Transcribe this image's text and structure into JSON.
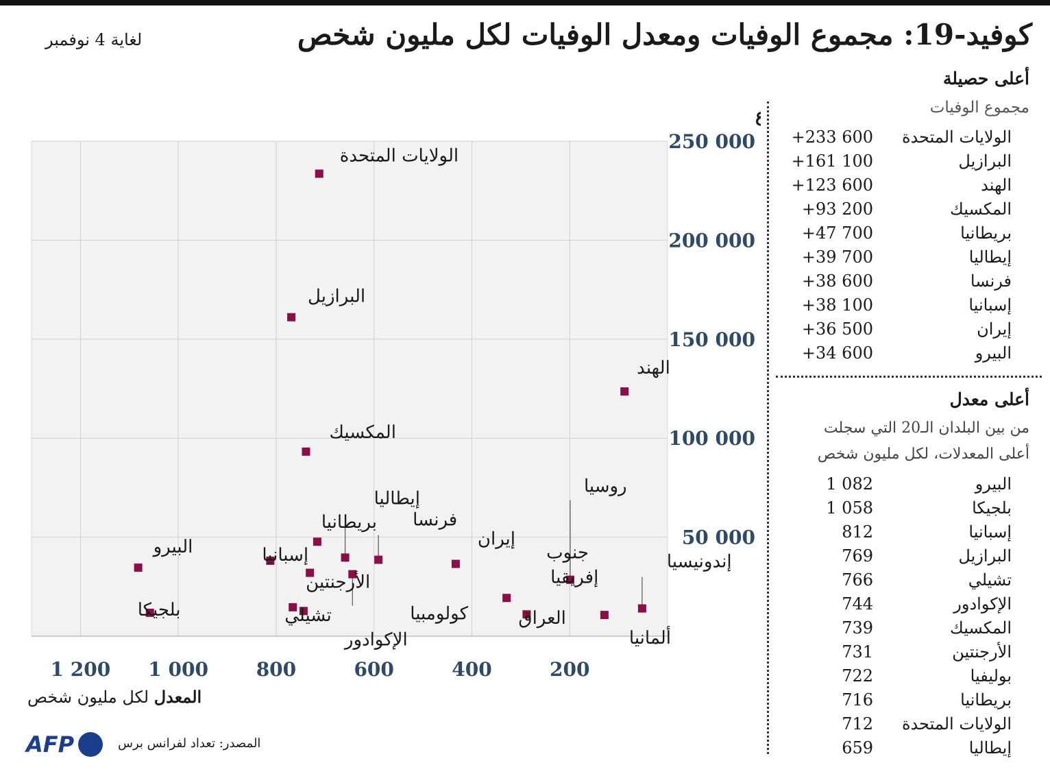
{
  "header": {
    "title": "كوفيد-19: مجموع الوفيات ومعدل الوفيات لكل مليون شخص",
    "date": "لغاية 4 نوفمبر"
  },
  "sidebar": {
    "top_total": {
      "heading": "أعلى حصيلة",
      "subheading": "مجموع الوفيات",
      "rows": [
        {
          "country": "الولايات المتحدة",
          "value": "+233 600"
        },
        {
          "country": "البرازيل",
          "value": "+161 100"
        },
        {
          "country": "الهند",
          "value": "+123 600"
        },
        {
          "country": "المكسيك",
          "value": "+93 200"
        },
        {
          "country": "بريطانيا",
          "value": "+47 700"
        },
        {
          "country": "إيطاليا",
          "value": "+39 700"
        },
        {
          "country": "فرنسا",
          "value": "+38 600"
        },
        {
          "country": "إسبانيا",
          "value": "+38 100"
        },
        {
          "country": "إيران",
          "value": "+36 500"
        },
        {
          "country": "البيرو",
          "value": "+34 600"
        }
      ]
    },
    "top_rate": {
      "heading": "أعلى معدل",
      "note_line1": "من بين البلدان الـ20 التي سجلت",
      "note_line2": "أعلى المعدلات، لكل مليون شخص",
      "rows": [
        {
          "country": "البيرو",
          "value": "1 082"
        },
        {
          "country": "بلجيكا",
          "value": "1 058"
        },
        {
          "country": "إسبانيا",
          "value": "812"
        },
        {
          "country": "البرازيل",
          "value": "769"
        },
        {
          "country": "تشيلي",
          "value": "766"
        },
        {
          "country": "الإكوادور",
          "value": "744"
        },
        {
          "country": "المكسيك",
          "value": "739"
        },
        {
          "country": "الأرجنتين",
          "value": "731"
        },
        {
          "country": "بوليفيا",
          "value": "722"
        },
        {
          "country": "بريطانيا",
          "value": "716"
        },
        {
          "country": "الولايات المتحدة",
          "value": "712"
        },
        {
          "country": "إيطاليا",
          "value": "659"
        }
      ]
    }
  },
  "chart_data": {
    "type": "scatter",
    "ylabel": "المجموع",
    "xlabel_bold": "المعدل",
    "xlabel_rest": "لكل مليون شخص",
    "x_reversed": true,
    "xlim": [
      0,
      1300
    ],
    "ylim": [
      0,
      250000
    ],
    "x_ticks": [
      {
        "value": 200,
        "label": "200"
      },
      {
        "value": 400,
        "label": "400"
      },
      {
        "value": 600,
        "label": "600"
      },
      {
        "value": 800,
        "label": "800"
      },
      {
        "value": 1000,
        "label": "1 000"
      },
      {
        "value": 1200,
        "label": "1 200"
      }
    ],
    "y_ticks": [
      {
        "value": 50000,
        "label": "50 000"
      },
      {
        "value": 100000,
        "label": "100 000"
      },
      {
        "value": 150000,
        "label": "150 000"
      },
      {
        "value": 200000,
        "label": "200 000"
      },
      {
        "value": 250000,
        "label": "250 000"
      }
    ],
    "grid": true,
    "marker_color": "#8a0f46",
    "points": [
      {
        "name": "الولايات المتحدة",
        "x": 712,
        "y": 233600
      },
      {
        "name": "البرازيل",
        "x": 769,
        "y": 161100
      },
      {
        "name": "الهند",
        "x": 88,
        "y": 123600
      },
      {
        "name": "المكسيك",
        "x": 739,
        "y": 93200
      },
      {
        "name": "بريطانيا",
        "x": 716,
        "y": 47700
      },
      {
        "name": "إيطاليا",
        "x": 659,
        "y": 39700
      },
      {
        "name": "فرنسا",
        "x": 591,
        "y": 38600
      },
      {
        "name": "إسبانيا",
        "x": 812,
        "y": 38100
      },
      {
        "name": "إيران",
        "x": 433,
        "y": 36500
      },
      {
        "name": "البيرو",
        "x": 1082,
        "y": 34600
      },
      {
        "name": "كولومبيا",
        "x": 644,
        "y": 31300
      },
      {
        "name": "الأرجنتين",
        "x": 731,
        "y": 32000
      },
      {
        "name": "روسيا",
        "x": 199,
        "y": 28500
      },
      {
        "name": "جنوب إفريقيا",
        "x": 329,
        "y": 19300
      },
      {
        "name": "تشيلي",
        "x": 766,
        "y": 14600
      },
      {
        "name": "الإكوادور",
        "x": 744,
        "y": 12700
      },
      {
        "name": "العراق",
        "x": 288,
        "y": 11000
      },
      {
        "name": "ألمانيا",
        "x": 129,
        "y": 10700
      },
      {
        "name": "إندونيسيا",
        "x": 52,
        "y": 14000
      },
      {
        "name": "بلجيكا",
        "x": 1058,
        "y": 11800
      }
    ]
  },
  "footer": {
    "source": "المصدر: تعداد لفرانس برس",
    "logo": "AFP"
  }
}
